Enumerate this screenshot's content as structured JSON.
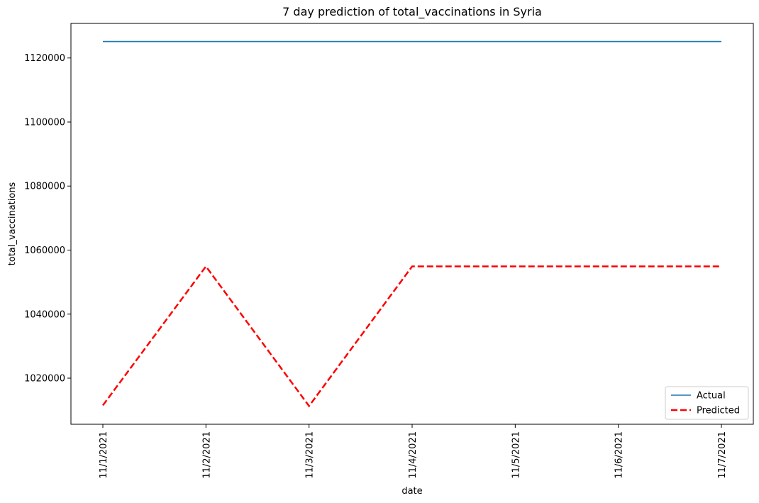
{
  "chart_data": {
    "type": "line",
    "title": "7 day prediction of total_vaccinations in Syria",
    "xlabel": "date",
    "ylabel": "total_vaccinations",
    "x": [
      "11/1/2021",
      "11/2/2021",
      "11/3/2021",
      "11/4/2021",
      "11/5/2021",
      "11/6/2021",
      "11/7/2021"
    ],
    "series": [
      {
        "name": "Actual",
        "color": "#1f77b4",
        "style": "solid",
        "values": [
          1125120,
          1125120,
          1125120,
          1125120,
          1125120,
          1125120,
          1125120
        ]
      },
      {
        "name": "Predicted",
        "color": "#ff0000",
        "style": "dashed",
        "values": [
          1011500,
          1054900,
          1011300,
          1054900,
          1054900,
          1054900,
          1054900
        ]
      }
    ],
    "yticks": [
      1020000,
      1040000,
      1060000,
      1080000,
      1100000,
      1120000
    ],
    "ylim": [
      1005600,
      1130800
    ],
    "grid": false,
    "legend_position": "lower-right"
  }
}
